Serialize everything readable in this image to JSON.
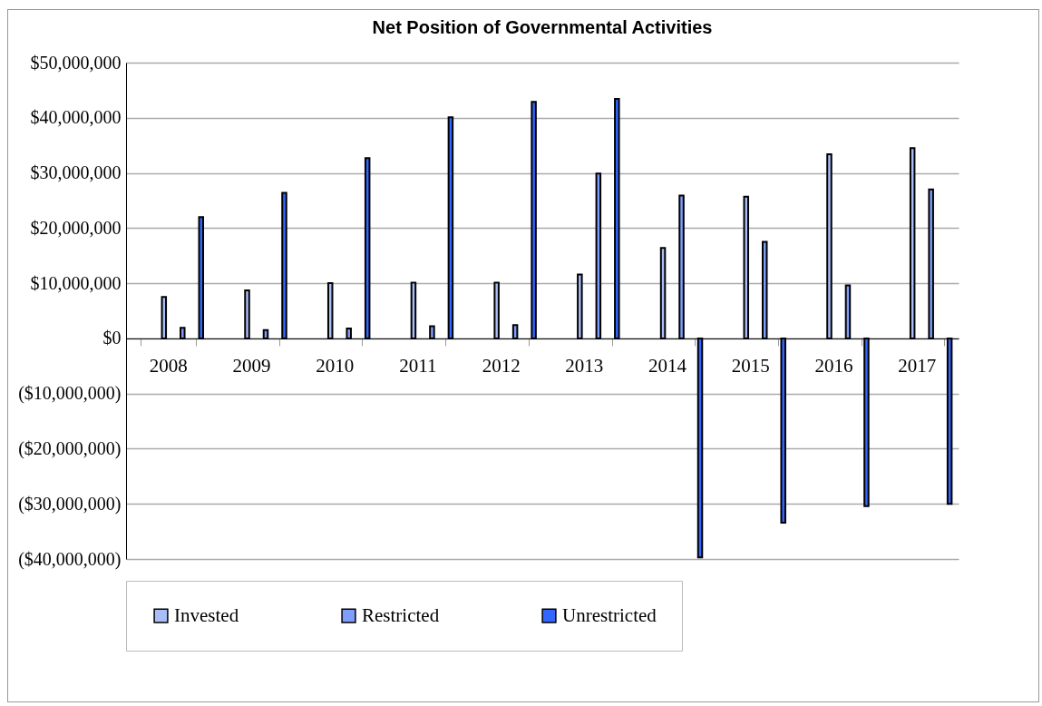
{
  "chart_data": {
    "type": "bar",
    "title": "Net Position of Governmental Activities",
    "categories": [
      "2008",
      "2009",
      "2010",
      "2011",
      "2012",
      "2013",
      "2014",
      "2015",
      "2016",
      "2017"
    ],
    "series": [
      {
        "name": "Invested",
        "color": "#a9bdf7",
        "values": [
          7500000,
          8700000,
          10000000,
          10100000,
          10100000,
          11600000,
          16400000,
          25700000,
          33400000,
          34500000
        ]
      },
      {
        "name": "Restricted",
        "color": "#7f9dfb",
        "values": [
          1900000,
          1500000,
          1800000,
          2200000,
          2400000,
          29900000,
          25900000,
          17500000,
          9600000,
          27000000
        ]
      },
      {
        "name": "Unrestricted",
        "color": "#3366ff",
        "values": [
          22000000,
          26400000,
          32700000,
          40100000,
          42900000,
          43400000,
          -39700000,
          -33400000,
          -30400000,
          -30000000
        ]
      }
    ],
    "ylim": [
      -40000000,
      50000000
    ],
    "yticks": [
      {
        "value": -40000000,
        "label": "($40,000,000)"
      },
      {
        "value": -30000000,
        "label": "($30,000,000)"
      },
      {
        "value": -20000000,
        "label": "($20,000,000)"
      },
      {
        "value": -10000000,
        "label": "($10,000,000)"
      },
      {
        "value": 0,
        "label": "$0"
      },
      {
        "value": 10000000,
        "label": "$10,000,000"
      },
      {
        "value": 20000000,
        "label": "$20,000,000"
      },
      {
        "value": 30000000,
        "label": "$30,000,000"
      },
      {
        "value": 40000000,
        "label": "$40,000,000"
      },
      {
        "value": 50000000,
        "label": "$50,000,000"
      }
    ],
    "grid": "y",
    "legend": "bottom"
  }
}
